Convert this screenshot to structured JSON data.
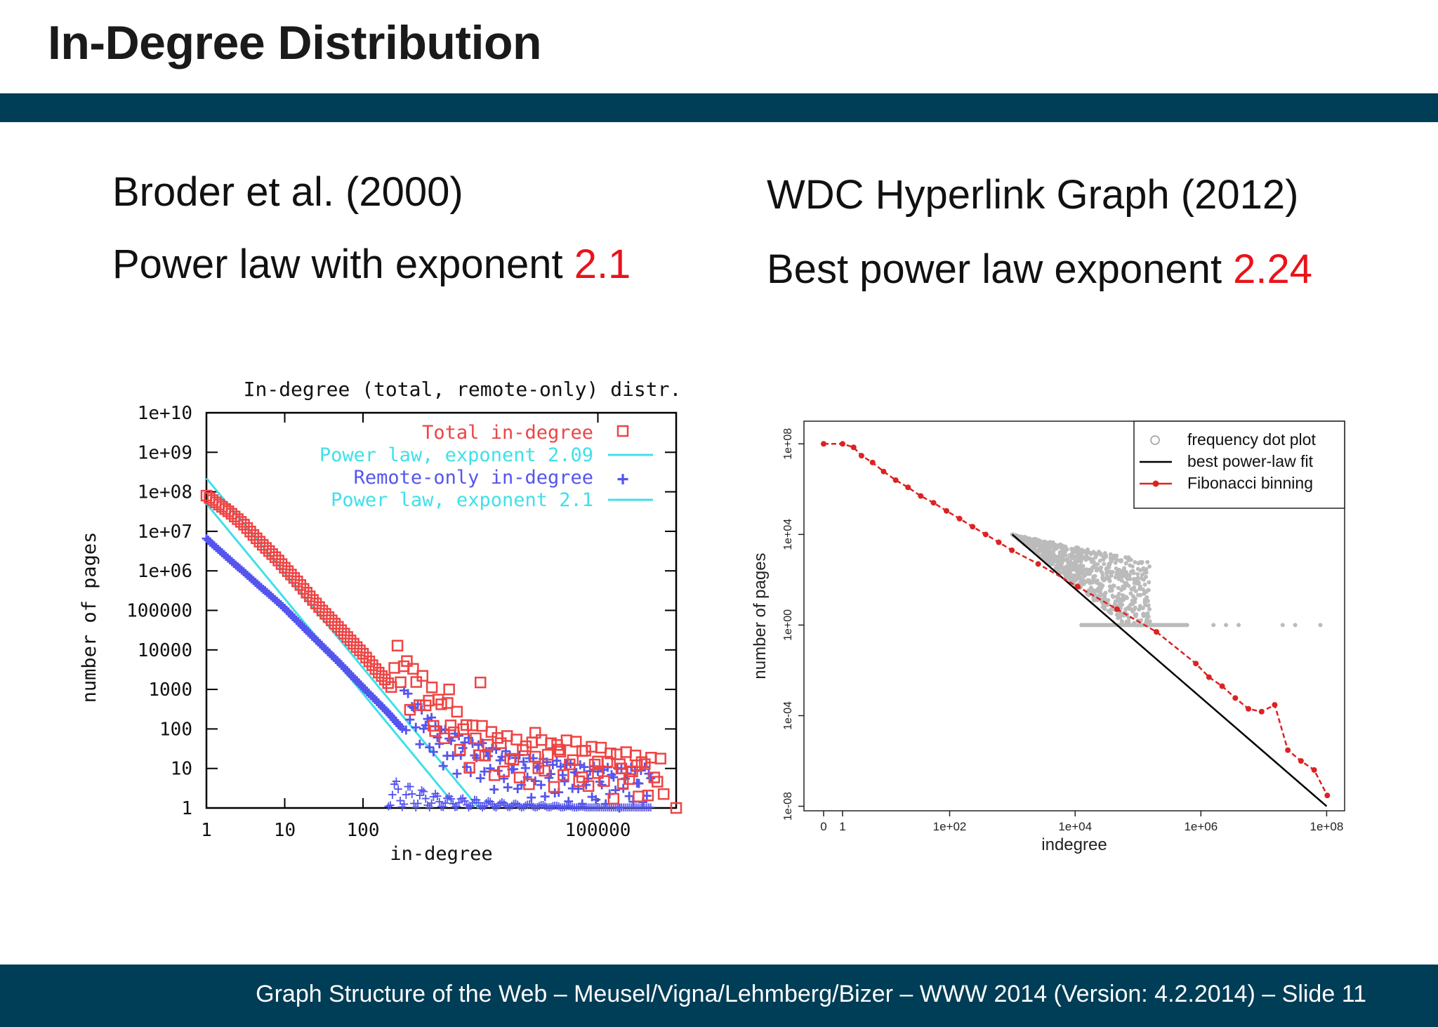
{
  "slide": {
    "title": "In-Degree Distribution",
    "footer": "Graph Structure of the Web – Meusel/Vigna/Lehmberg/Bizer – WWW 2014  (Version: 4.2.2014) –  Slide 11",
    "band_color": "#003d56",
    "accent_color": "#e8141a"
  },
  "left": {
    "heading": "Broder et al. (2000)",
    "subheading_prefix": "Power law with exponent ",
    "subheading_value": "2.1"
  },
  "right": {
    "heading": "WDC Hyperlink Graph (2012)",
    "subheading_prefix": "Best power law exponent ",
    "subheading_value": "2.24"
  },
  "chart_data": [
    {
      "type": "scatter",
      "title": "In-degree (total, remote-only) distr.",
      "xlabel": "in-degree",
      "ylabel": "number of pages",
      "x_scale": "log",
      "y_scale": "log",
      "xlim": [
        1,
        1000000
      ],
      "ylim": [
        1,
        10000000000
      ],
      "x_ticks": [
        "1",
        "10",
        "100",
        "100000"
      ],
      "y_ticks": [
        "1e+10",
        "1e+09",
        "1e+08",
        "1e+07",
        "1e+06",
        "100000",
        "10000",
        "1000",
        "100",
        "10",
        "1"
      ],
      "legend_position": "top-right",
      "grid": false,
      "series": [
        {
          "name": "Total in-degree",
          "marker": "square",
          "color": "#ee4444",
          "x": [
            1,
            2,
            3,
            4,
            5,
            6,
            8,
            10,
            15,
            20,
            30,
            50,
            70,
            100,
            150,
            200,
            300,
            400,
            500,
            1000,
            2000,
            5000,
            10000,
            50000,
            100000,
            700000
          ],
          "y": [
            80000000,
            30000000,
            15000000,
            8000000,
            5000000,
            3500000,
            2000000,
            1200000,
            500000,
            250000,
            100000,
            35000,
            17000,
            8000,
            3000,
            1600,
            600,
            300,
            170,
            40,
            10,
            5,
            3,
            3,
            2,
            1
          ]
        },
        {
          "name": "Power law, exponent 2.09",
          "marker": "line",
          "color": "#40e0e8",
          "x": [
            1,
            3000
          ],
          "y": [
            220000000,
            1
          ]
        },
        {
          "name": "Remote-only in-degree",
          "marker": "plus",
          "color": "#5555ee",
          "x": [
            1,
            2,
            3,
            4,
            5,
            6,
            8,
            10,
            20,
            50,
            100,
            200,
            500,
            1000,
            5000,
            10000,
            100000,
            500000
          ],
          "y": [
            7000000,
            2000000,
            1000000,
            600000,
            400000,
            300000,
            180000,
            120000,
            30000,
            5000,
            1200,
            300,
            40,
            10,
            3,
            2,
            1,
            1
          ]
        },
        {
          "name": "Power law, exponent 2.1",
          "marker": "line",
          "color": "#40e0e8",
          "x": [
            1,
            1600
          ],
          "y": [
            50000000,
            1
          ]
        }
      ]
    },
    {
      "type": "scatter",
      "xlabel": "indegree",
      "ylabel": "number of pages",
      "x_scale": "log1p",
      "y_scale": "log",
      "x_ticks": [
        "0",
        "1",
        "1e+02",
        "1e+04",
        "1e+06",
        "1e+08"
      ],
      "y_ticks": [
        "1e+08",
        "1e+04",
        "1e+00",
        "1e-04",
        "1e-08"
      ],
      "legend_position": "top-right",
      "grid": false,
      "series": [
        {
          "name": "frequency dot plot",
          "marker": "circle",
          "color": "#bbbbbb",
          "x": [
            1000,
            2000,
            5000,
            10000,
            20000,
            50000,
            100000,
            200000,
            500000,
            1000000,
            3000000,
            10000000,
            50000000
          ],
          "y": [
            8000,
            5000,
            3000,
            2000,
            600,
            300,
            100,
            50,
            20,
            1,
            1,
            1,
            1
          ]
        },
        {
          "name": "best power-law fit",
          "marker": "line",
          "color": "#000000",
          "x": [
            1000,
            100000000
          ],
          "y": [
            10000,
            1e-08
          ]
        },
        {
          "name": "Fibonacci binning",
          "marker": "dot-line",
          "color": "#dd2222",
          "x": [
            0,
            1,
            2,
            3,
            5,
            8,
            13,
            21,
            34,
            55,
            89,
            144,
            233,
            377,
            610,
            987,
            2584,
            10946,
            46368,
            196418,
            832040,
            1346269,
            2178309,
            3524578,
            5702887,
            9227465,
            14930352,
            24157817,
            39088169,
            63245986,
            102334155
          ],
          "y": [
            100000000,
            100000000,
            70000000,
            30000000,
            15000000,
            6000000,
            2500000,
            1200000,
            500000,
            250000,
            110000,
            50000,
            22000,
            10000,
            4500,
            2000,
            500,
            50,
            5,
            0.5,
            0.02,
            0.005,
            0.002,
            0.0006,
            0.0002,
            0.00015,
            0.0003,
            3e-06,
            1e-06,
            4e-07,
            3e-08
          ]
        }
      ]
    }
  ]
}
